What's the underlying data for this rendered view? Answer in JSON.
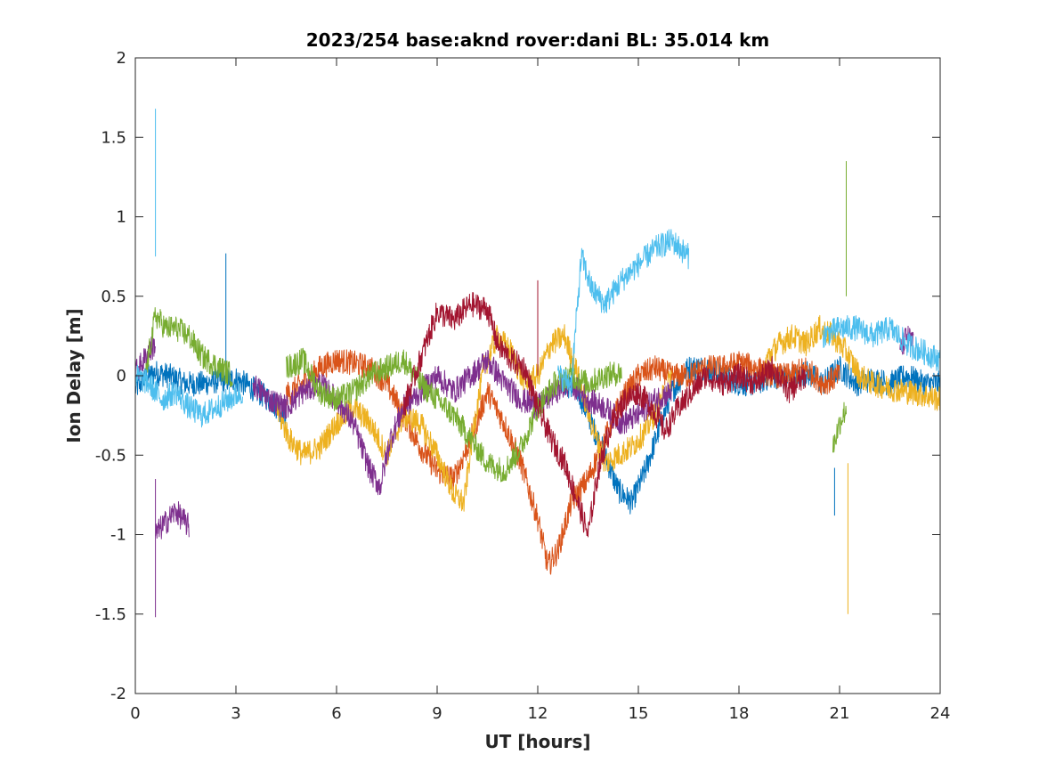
{
  "chart_data": {
    "type": "line",
    "title": "2023/254 base:aknd rover:dani BL: 35.014 km",
    "xlabel": "UT [hours]",
    "ylabel": "Ion Delay [m]",
    "xlim": [
      0,
      24
    ],
    "ylim": [
      -2,
      2
    ],
    "xticks": [
      0,
      3,
      6,
      9,
      12,
      15,
      18,
      21,
      24
    ],
    "xtick_labels": [
      "0",
      "3",
      "6",
      "9",
      "12",
      "15",
      "18",
      "21",
      "24"
    ],
    "yticks": [
      2,
      1.5,
      1,
      0.5,
      0,
      -0.5,
      -1,
      -1.5,
      -2
    ],
    "ytick_labels": [
      "2",
      "1.5",
      "1",
      "0.5",
      "0",
      "-0.5",
      "-1",
      "-1.5",
      "-2"
    ],
    "grid": false,
    "legend": "none",
    "series": [
      {
        "color": "#0072BD",
        "segments": [
          {
            "x": [
              0.0,
              0.3,
              0.6,
              1.0,
              1.5,
              2.0,
              2.5,
              3.0,
              3.5,
              4.0,
              4.5
            ],
            "y": [
              -0.08,
              -0.02,
              0.02,
              0.0,
              -0.05,
              -0.05,
              -0.03,
              -0.02,
              -0.08,
              -0.15,
              -0.25
            ]
          },
          {
            "x": [
              2.7,
              2.7
            ],
            "y": [
              0.0,
              0.77
            ]
          },
          {
            "x": [
              12.8,
              13.2,
              13.6,
              14.0,
              14.4,
              14.8,
              15.2,
              15.6,
              16.0,
              16.5,
              17.0,
              17.5,
              18.0,
              18.5,
              19.0,
              19.5,
              20.0,
              20.5,
              21.0,
              21.5,
              22.0,
              22.5,
              23.0,
              23.5,
              24.0
            ],
            "y": [
              -0.05,
              -0.1,
              -0.3,
              -0.5,
              -0.72,
              -0.8,
              -0.6,
              -0.35,
              -0.1,
              0.05,
              0.05,
              0.0,
              -0.05,
              -0.05,
              0.0,
              -0.02,
              0.02,
              -0.05,
              0.05,
              -0.05,
              -0.02,
              -0.05,
              0.0,
              -0.05,
              -0.05
            ]
          },
          {
            "x": [
              20.85,
              20.85
            ],
            "y": [
              -0.58,
              -0.88
            ]
          }
        ]
      },
      {
        "color": "#D95319",
        "segments": [
          {
            "x": [
              4.5,
              5.0,
              5.5,
              6.0,
              6.5,
              7.0,
              7.5,
              8.0,
              8.5,
              9.0,
              9.5,
              10.0,
              10.5,
              11.0,
              11.5,
              12.0,
              12.3,
              12.6,
              13.0,
              13.5,
              14.0,
              14.5,
              15.0,
              15.5,
              16.0,
              16.5,
              17.0,
              17.5,
              18.0,
              18.5,
              19.0,
              19.5,
              20.0,
              20.5,
              21.0
            ],
            "y": [
              -0.12,
              -0.05,
              0.05,
              0.1,
              0.08,
              0.05,
              -0.05,
              -0.25,
              -0.45,
              -0.6,
              -0.65,
              -0.4,
              -0.1,
              -0.3,
              -0.55,
              -0.9,
              -1.2,
              -1.1,
              -0.8,
              -0.65,
              -0.4,
              -0.15,
              0.0,
              0.05,
              0.0,
              0.0,
              0.05,
              0.05,
              0.08,
              0.05,
              0.0,
              0.0,
              0.05,
              -0.05,
              0.0
            ]
          }
        ]
      },
      {
        "color": "#EDB120",
        "segments": [
          {
            "x": [
              4.2,
              4.6,
              5.0,
              5.5,
              6.0,
              6.5,
              7.0,
              7.5,
              8.0,
              8.5,
              9.0,
              9.5,
              9.8,
              10.1,
              10.4,
              10.8,
              11.2,
              11.6,
              12.0,
              12.4,
              12.8,
              13.2,
              13.6,
              14.0,
              14.4,
              14.8,
              15.2,
              15.6,
              16.0
            ],
            "y": [
              -0.2,
              -0.4,
              -0.5,
              -0.45,
              -0.3,
              -0.2,
              -0.3,
              -0.5,
              -0.25,
              -0.3,
              -0.5,
              -0.75,
              -0.8,
              -0.3,
              0.05,
              0.25,
              0.15,
              -0.05,
              0.0,
              0.2,
              0.25,
              0.0,
              -0.3,
              -0.55,
              -0.5,
              -0.45,
              -0.35,
              -0.2,
              0.0
            ]
          },
          {
            "x": [
              18.8,
              19.2,
              19.6,
              20.0,
              20.4,
              20.8,
              21.2,
              21.6,
              22.0,
              22.5,
              23.0,
              23.5,
              24.0
            ],
            "y": [
              0.1,
              0.2,
              0.25,
              0.2,
              0.3,
              0.25,
              0.15,
              0.0,
              -0.05,
              -0.08,
              -0.1,
              -0.12,
              -0.15
            ]
          },
          {
            "x": [
              21.25,
              21.25
            ],
            "y": [
              -0.55,
              -1.5
            ]
          }
        ]
      },
      {
        "color": "#7E2F8E",
        "segments": [
          {
            "x": [
              0.0,
              0.2,
              0.4,
              0.6
            ],
            "y": [
              0.02,
              0.08,
              0.15,
              0.2
            ]
          },
          {
            "x": [
              0.6,
              0.8,
              1.0,
              1.2,
              1.4,
              1.6
            ],
            "y": [
              -1.0,
              -0.95,
              -0.9,
              -0.85,
              -0.9,
              -0.95
            ]
          },
          {
            "x": [
              0.6,
              0.6
            ],
            "y": [
              -0.65,
              -1.52
            ]
          },
          {
            "x": [
              3.5,
              4.0,
              4.5,
              5.0,
              5.5,
              6.0,
              6.5,
              7.0,
              7.3,
              7.6,
              8.0,
              8.5,
              9.0,
              9.5,
              10.0,
              10.5,
              11.0,
              11.5,
              12.0,
              12.5,
              13.0,
              13.5,
              14.0,
              14.5,
              15.0,
              15.5,
              16.0
            ],
            "y": [
              -0.05,
              -0.15,
              -0.2,
              -0.1,
              -0.05,
              -0.15,
              -0.3,
              -0.6,
              -0.7,
              -0.4,
              -0.2,
              -0.1,
              0.0,
              -0.1,
              0.0,
              0.1,
              -0.05,
              -0.15,
              -0.2,
              -0.1,
              -0.05,
              -0.15,
              -0.2,
              -0.3,
              -0.25,
              -0.15,
              -0.1
            ]
          },
          {
            "x": [
              22.8,
              23.0,
              23.2
            ],
            "y": [
              0.15,
              0.25,
              0.2
            ]
          }
        ]
      },
      {
        "color": "#77AC30",
        "segments": [
          {
            "x": [
              0.3,
              0.6,
              0.9,
              1.2,
              1.6,
              2.0,
              2.5,
              2.9
            ],
            "y": [
              0.0,
              0.38,
              0.3,
              0.3,
              0.25,
              0.12,
              0.05,
              0.0
            ]
          },
          {
            "x": [
              4.5,
              5.0,
              5.5,
              6.0,
              6.5,
              7.0,
              7.5,
              8.0,
              8.5,
              9.0,
              9.5,
              10.0,
              10.5,
              11.0,
              11.5,
              12.0,
              12.5,
              13.0,
              13.5,
              14.0,
              14.5
            ],
            "y": [
              0.05,
              0.1,
              -0.1,
              -0.15,
              -0.1,
              0.0,
              0.05,
              0.1,
              -0.05,
              -0.15,
              -0.25,
              -0.4,
              -0.55,
              -0.6,
              -0.45,
              -0.2,
              -0.05,
              0.0,
              -0.05,
              0.0,
              0.02
            ]
          },
          {
            "x": [
              20.8,
              21.0,
              21.2
            ],
            "y": [
              -0.45,
              -0.3,
              -0.2
            ]
          },
          {
            "x": [
              21.2,
              21.2
            ],
            "y": [
              0.5,
              1.35
            ]
          }
        ]
      },
      {
        "color": "#4DBEEE",
        "segments": [
          {
            "x": [
              0.0,
              0.4,
              0.8,
              1.2,
              1.6,
              2.0,
              2.4,
              2.8,
              3.2
            ],
            "y": [
              0.0,
              -0.05,
              -0.15,
              -0.1,
              -0.2,
              -0.25,
              -0.2,
              -0.15,
              -0.1
            ]
          },
          {
            "x": [
              0.6,
              0.6
            ],
            "y": [
              0.75,
              1.68
            ]
          },
          {
            "x": [
              12.6,
              13.0,
              13.3,
              13.6,
              14.0,
              14.5,
              15.0,
              15.5,
              16.0,
              16.5
            ],
            "y": [
              0.0,
              -0.05,
              0.75,
              0.55,
              0.45,
              0.6,
              0.7,
              0.8,
              0.85,
              0.75
            ]
          },
          {
            "x": [
              20.5,
              21.0,
              21.5,
              22.0,
              22.5,
              23.0,
              23.5,
              24.0
            ],
            "y": [
              0.25,
              0.3,
              0.3,
              0.25,
              0.3,
              0.2,
              0.15,
              0.1
            ]
          }
        ]
      },
      {
        "color": "#A2142F",
        "segments": [
          {
            "x": [
              8.0,
              8.5,
              9.0,
              9.5,
              10.0,
              10.5,
              10.8,
              11.2,
              11.6,
              12.0,
              12.4,
              12.8,
              13.2,
              13.5,
              13.8,
              14.2,
              14.6,
              15.0,
              15.4,
              15.8,
              16.2,
              16.6,
              17.0,
              17.5,
              18.0,
              18.5,
              19.0,
              19.5,
              20.0
            ],
            "y": [
              -0.2,
              0.1,
              0.4,
              0.35,
              0.45,
              0.42,
              0.2,
              0.1,
              0.05,
              -0.2,
              -0.4,
              -0.55,
              -0.8,
              -1.0,
              -0.6,
              -0.3,
              -0.15,
              -0.1,
              -0.2,
              -0.35,
              -0.2,
              -0.1,
              0.0,
              -0.05,
              0.0,
              -0.05,
              0.05,
              -0.1,
              0.0
            ]
          },
          {
            "x": [
              12.0,
              12.0
            ],
            "y": [
              0.0,
              0.6
            ]
          }
        ]
      }
    ]
  }
}
